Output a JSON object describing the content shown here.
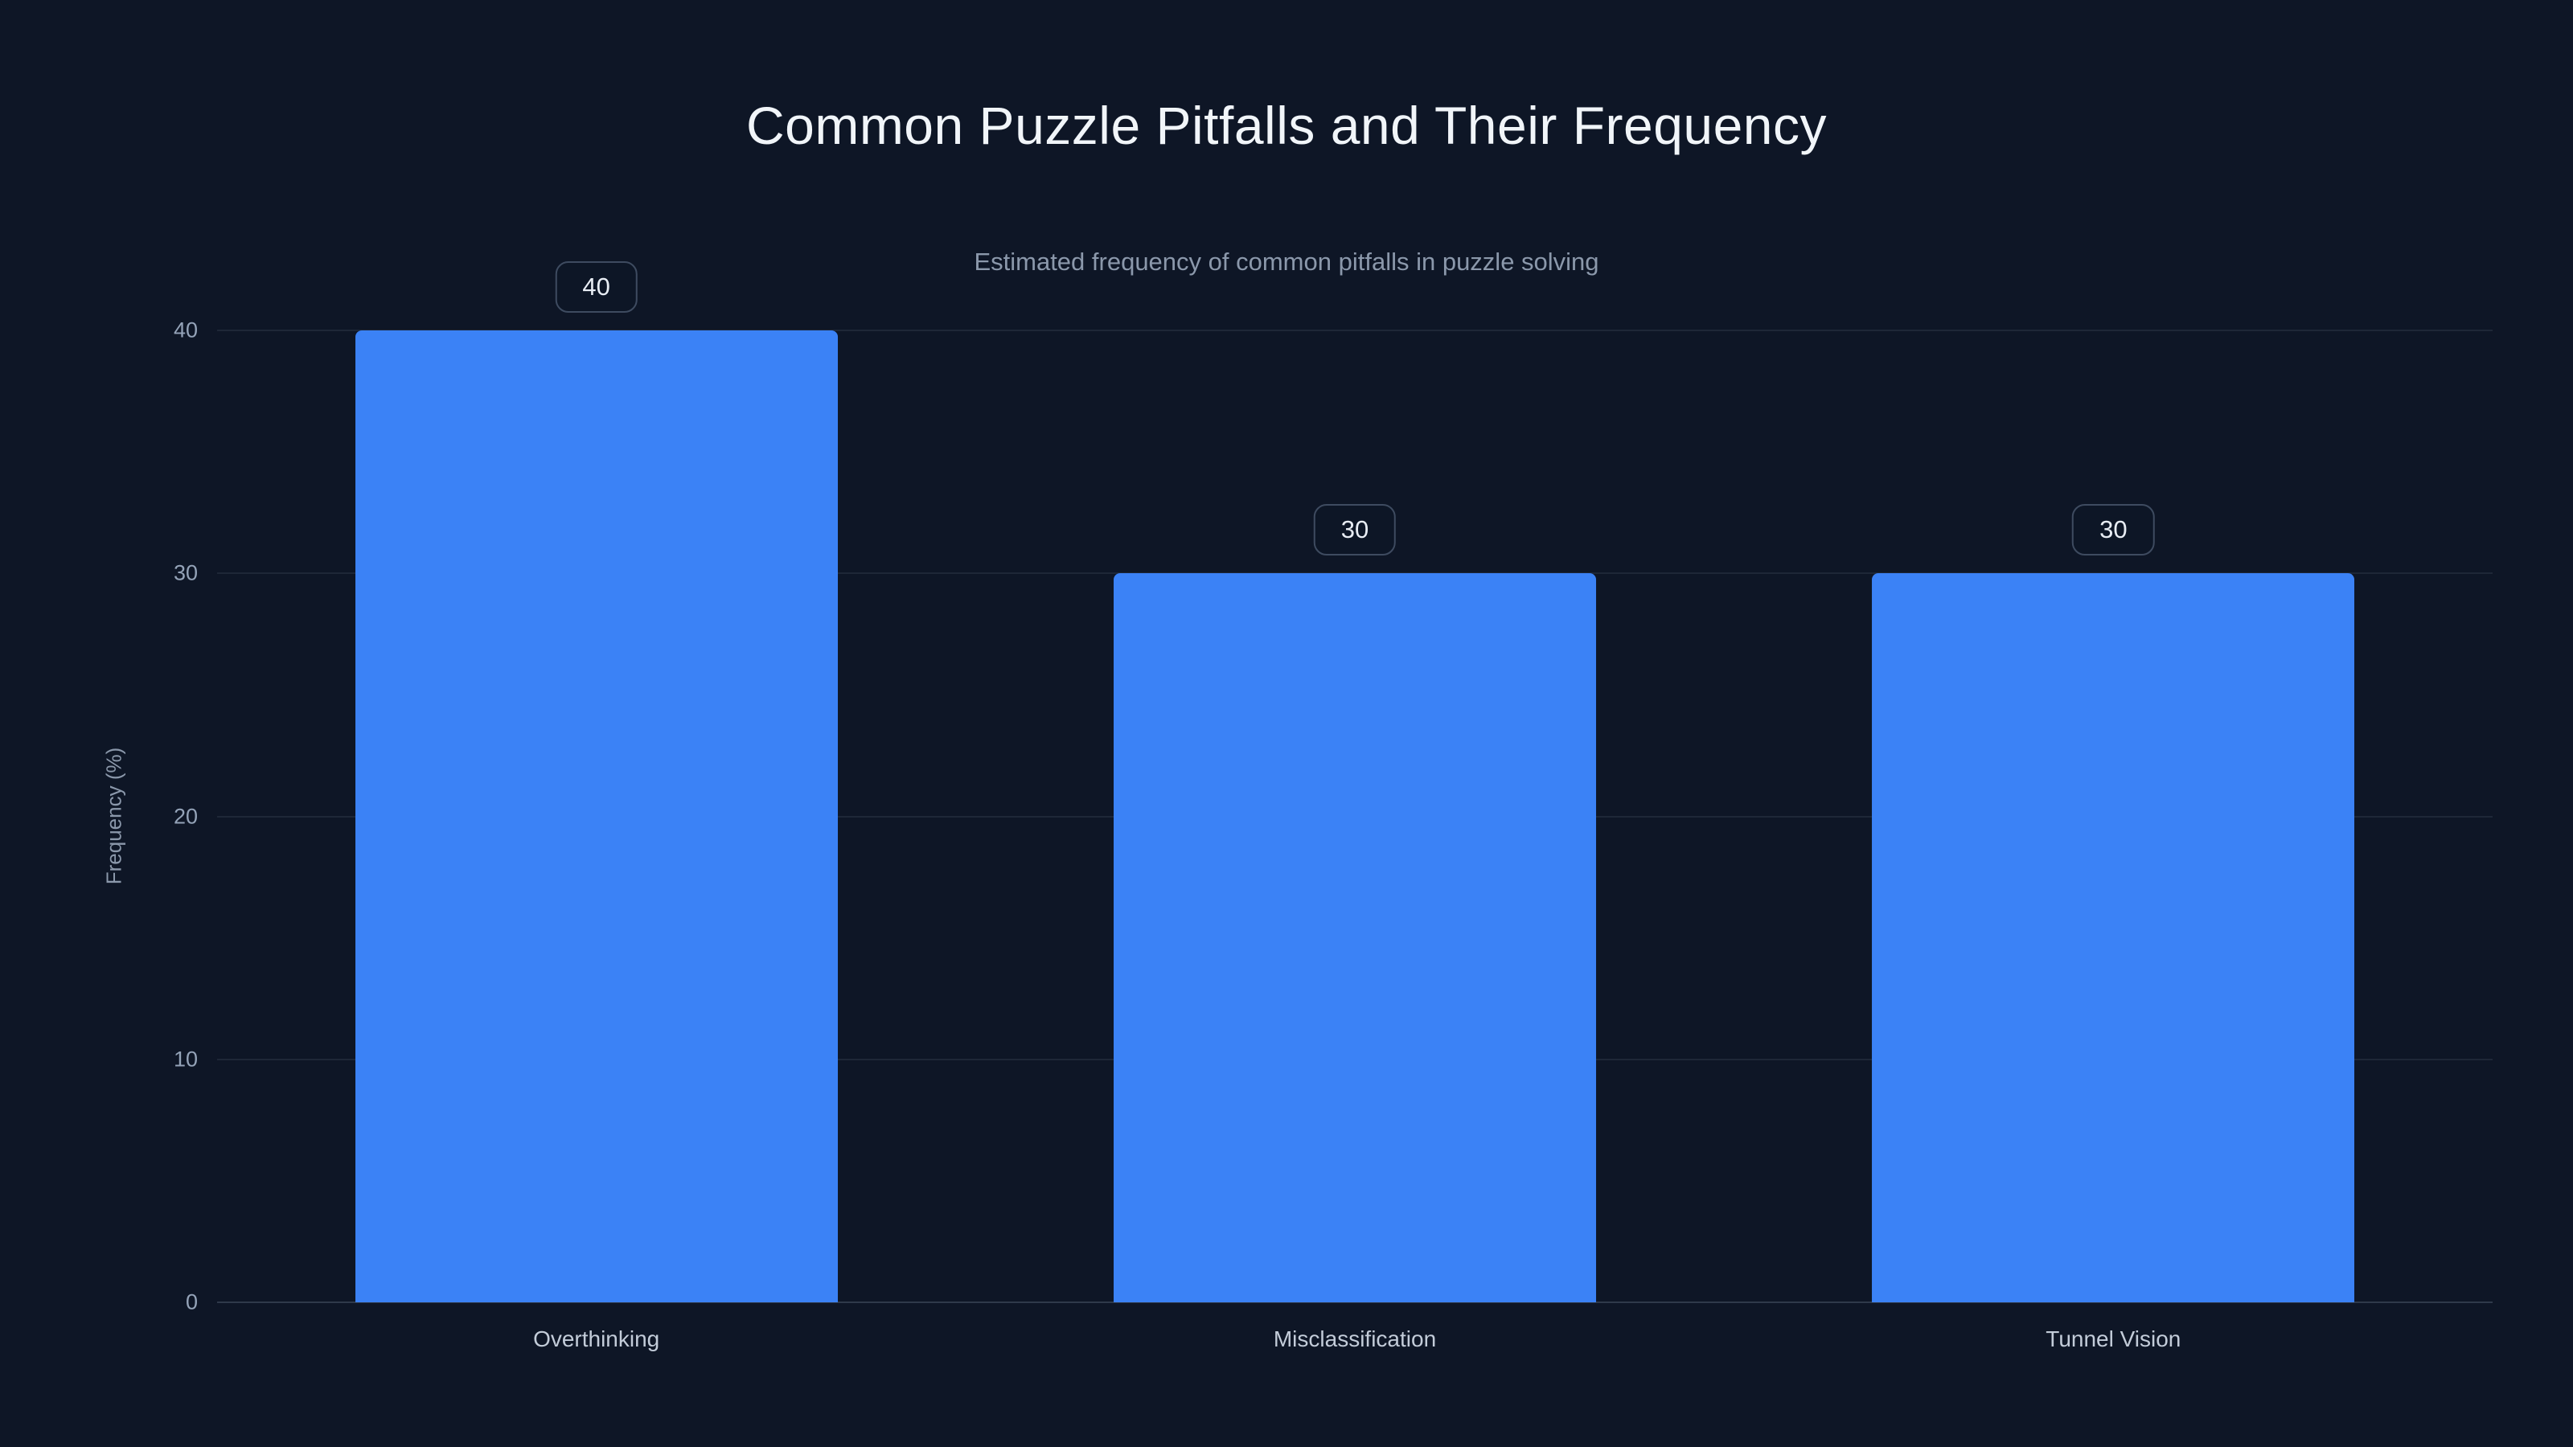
{
  "chart_data": {
    "type": "bar",
    "title": "Common Puzzle Pitfalls and Their Frequency",
    "subtitle": "Estimated frequency of common pitfalls in puzzle solving",
    "categories": [
      "Overthinking",
      "Misclassification",
      "Tunnel Vision"
    ],
    "values": [
      40,
      30,
      30
    ],
    "data_labels": [
      "40",
      "30",
      "30"
    ],
    "xlabel": "",
    "ylabel": "Frequency (%)",
    "ylim": [
      0,
      40
    ],
    "yticks": [
      0,
      10,
      20,
      30,
      40
    ],
    "grid": true,
    "legend": false,
    "colors": {
      "background": "#0e1626",
      "bar": "#3b82f6",
      "title_text": "#f1f5f9",
      "subtitle_text": "#8b98ab",
      "tick_text": "#94a3b8",
      "gridline": "rgba(148,163,184,0.12)"
    }
  }
}
